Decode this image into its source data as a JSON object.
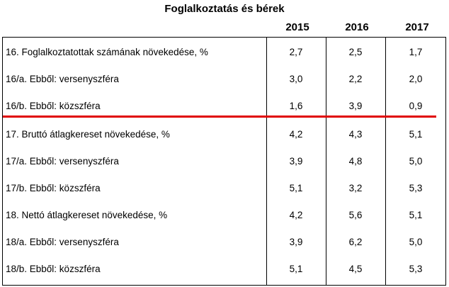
{
  "title": "Foglalkoztatás és bérek",
  "columns": [
    "2015",
    "2016",
    "2017"
  ],
  "rows": [
    {
      "label": "16. Foglalkoztatottak számának növekedése, %",
      "v": [
        "2,7",
        "2,5",
        "1,7"
      ]
    },
    {
      "label": "16/a. Ebből: versenyszféra",
      "v": [
        "3,0",
        "2,2",
        "2,0"
      ]
    },
    {
      "label": "16/b. Ebből: közszféra",
      "v": [
        "1,6",
        "3,9",
        "0,9"
      ]
    },
    {
      "label": "17. Bruttó átlagkereset növekedése, %",
      "v": [
        "4,2",
        "4,3",
        "5,1"
      ]
    },
    {
      "label": "17/a. Ebből: versenyszféra",
      "v": [
        "3,9",
        "4,8",
        "5,0"
      ]
    },
    {
      "label": "17/b. Ebből: közszféra",
      "v": [
        "5,1",
        "3,2",
        "5,3"
      ]
    },
    {
      "label": "18. Nettó átlagkereset növekedése, %",
      "v": [
        "4,2",
        "5,6",
        "5,1"
      ]
    },
    {
      "label": "18/a. Ebből: versenyszféra",
      "v": [
        "3,9",
        "6,2",
        "5,0"
      ]
    },
    {
      "label": "18/b. Ebből: közszféra",
      "v": [
        "5,1",
        "4,5",
        "5,3"
      ]
    }
  ],
  "highlight_color": "#e00000"
}
